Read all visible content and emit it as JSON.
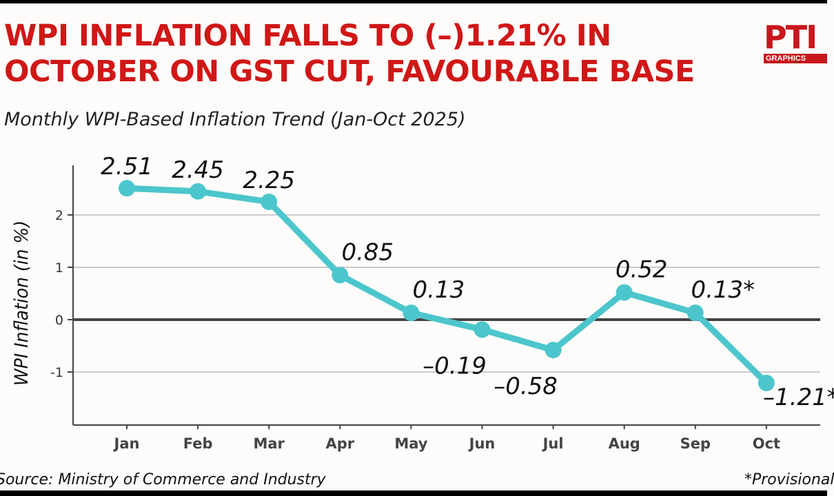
{
  "header": {
    "title": "WPI INFLATION FALLS TO (–)1.21% IN OCTOBER ON GST CUT, FAVOURABLE BASE",
    "subtitle": "Monthly WPI-Based Inflation Trend (Jan-Oct 2025)"
  },
  "logo": {
    "text": "PTI",
    "subtext": "GRAPHICS"
  },
  "footer": {
    "source": "Source: Ministry of Commerce and Industry",
    "note": "*Provisional"
  },
  "colors": {
    "title": "#d01717",
    "line": "#4cc6cc",
    "logo": "#c8161d"
  },
  "chart_data": {
    "type": "line",
    "title": "Monthly WPI-Based Inflation Trend (Jan-Oct 2025)",
    "xlabel": "",
    "ylabel": "WPI Inflation (in %)",
    "categories": [
      "Jan",
      "Feb",
      "Mar",
      "Apr",
      "May",
      "Jun",
      "Jul",
      "Aug",
      "Sep",
      "Oct"
    ],
    "values": [
      2.51,
      2.45,
      2.25,
      0.85,
      0.13,
      -0.19,
      -0.58,
      0.52,
      0.13,
      -1.21
    ],
    "data_labels": [
      "2.51",
      "2.45",
      "2.25",
      "0.85",
      "0.13",
      "–0.19",
      "–0.58",
      "0.52",
      "0.13*",
      "–1.21*"
    ],
    "yticks": [
      2,
      1,
      0,
      -1
    ],
    "ytick_labels": [
      "2",
      "1",
      "0",
      "-1"
    ],
    "ylim": [
      -2,
      3.1
    ],
    "grid": true
  }
}
